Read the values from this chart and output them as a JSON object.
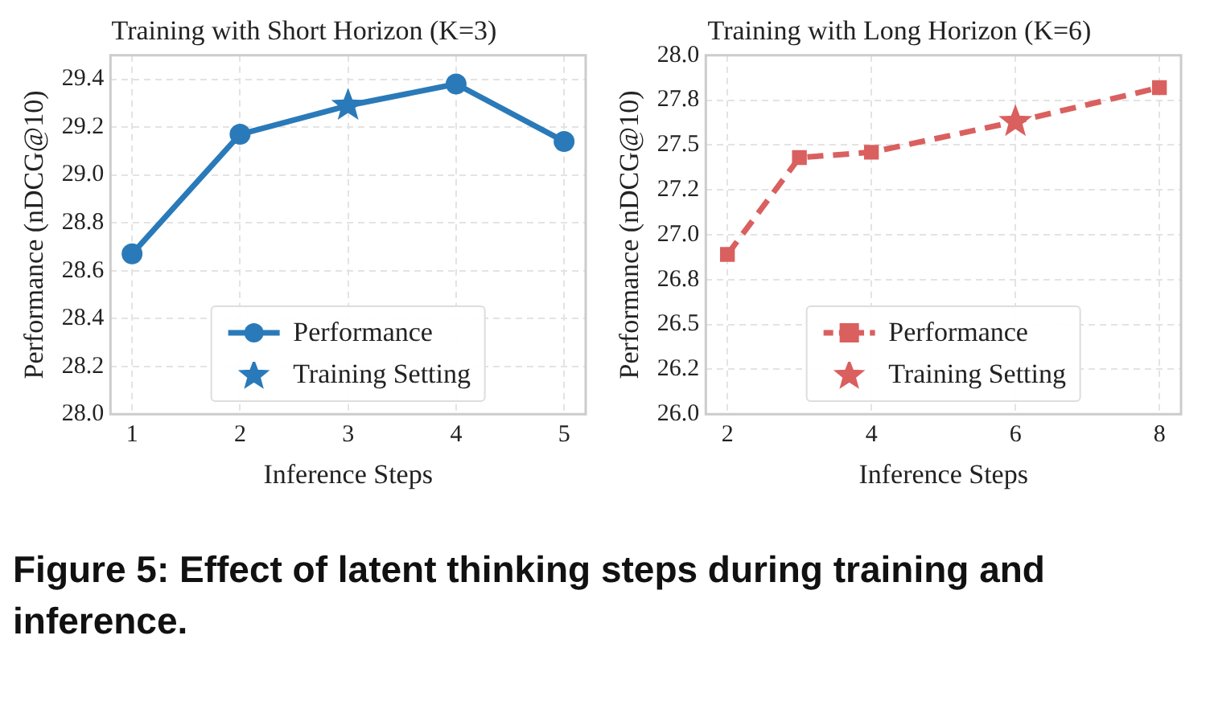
{
  "chart_data": [
    {
      "type": "line",
      "title": "Training with Short Horizon (K=3)",
      "xlabel": "Inference Steps",
      "ylabel": "Performance (nDCG@10)",
      "xlim": [
        0.8,
        5.2
      ],
      "xticks": [
        1,
        2,
        3,
        4,
        5
      ],
      "ylim": [
        28.0,
        29.5
      ],
      "yticks": [
        {
          "value": 28.0,
          "label": "28.0"
        },
        {
          "value": 28.2,
          "label": "28.2"
        },
        {
          "value": 28.4,
          "label": "28.4"
        },
        {
          "value": 28.6,
          "label": "28.6"
        },
        {
          "value": 28.8,
          "label": "28.8"
        },
        {
          "value": 29.0,
          "label": "29.0"
        },
        {
          "value": 29.2,
          "label": "29.2"
        },
        {
          "value": 29.4,
          "label": "29.4"
        }
      ],
      "grid": true,
      "legend": "bottom",
      "series": [
        {
          "name": "Performance",
          "type": "line",
          "color": "#2a7ab9",
          "marker": "circle",
          "line_style": "solid",
          "x": [
            1,
            2,
            3,
            4,
            5
          ],
          "values": [
            28.67,
            29.17,
            29.29,
            29.38,
            29.14
          ]
        },
        {
          "name": "Training Setting",
          "type": "scatter",
          "color": "#2a7ab9",
          "marker": "star",
          "x": [
            3
          ],
          "values": [
            29.29
          ]
        }
      ]
    },
    {
      "type": "line",
      "title": "Training with Long Horizon (K=6)",
      "xlabel": "Inference Steps",
      "ylabel": "Performance (nDCG@10)",
      "xlim": [
        1.7,
        8.3
      ],
      "xticks": [
        2,
        4,
        6,
        8
      ],
      "ylim": [
        26.0,
        28.0
      ],
      "yticks": [
        {
          "value": 26.0,
          "label": "26.0"
        },
        {
          "value": 26.25,
          "label": "26.2"
        },
        {
          "value": 26.5,
          "label": "26.5"
        },
        {
          "value": 26.75,
          "label": "26.8"
        },
        {
          "value": 27.0,
          "label": "27.0"
        },
        {
          "value": 27.25,
          "label": "27.2"
        },
        {
          "value": 27.5,
          "label": "27.5"
        },
        {
          "value": 27.75,
          "label": "27.8"
        },
        {
          "value": 28.0,
          "label": "28.0"
        }
      ],
      "grid": true,
      "legend": "bottom",
      "annotations": [
        "Figure 5: Effect of latent thinking steps during training and inference."
      ],
      "series": [
        {
          "name": "Performance",
          "type": "line",
          "color": "#d9605f",
          "marker": "square",
          "line_style": "dashed",
          "x": [
            2,
            3,
            4,
            6,
            8
          ],
          "values": [
            26.89,
            27.43,
            27.46,
            27.63,
            27.82
          ]
        },
        {
          "name": "Training Setting",
          "type": "scatter",
          "color": "#d9605f",
          "marker": "star",
          "x": [
            6
          ],
          "values": [
            27.63
          ]
        }
      ]
    }
  ]
}
